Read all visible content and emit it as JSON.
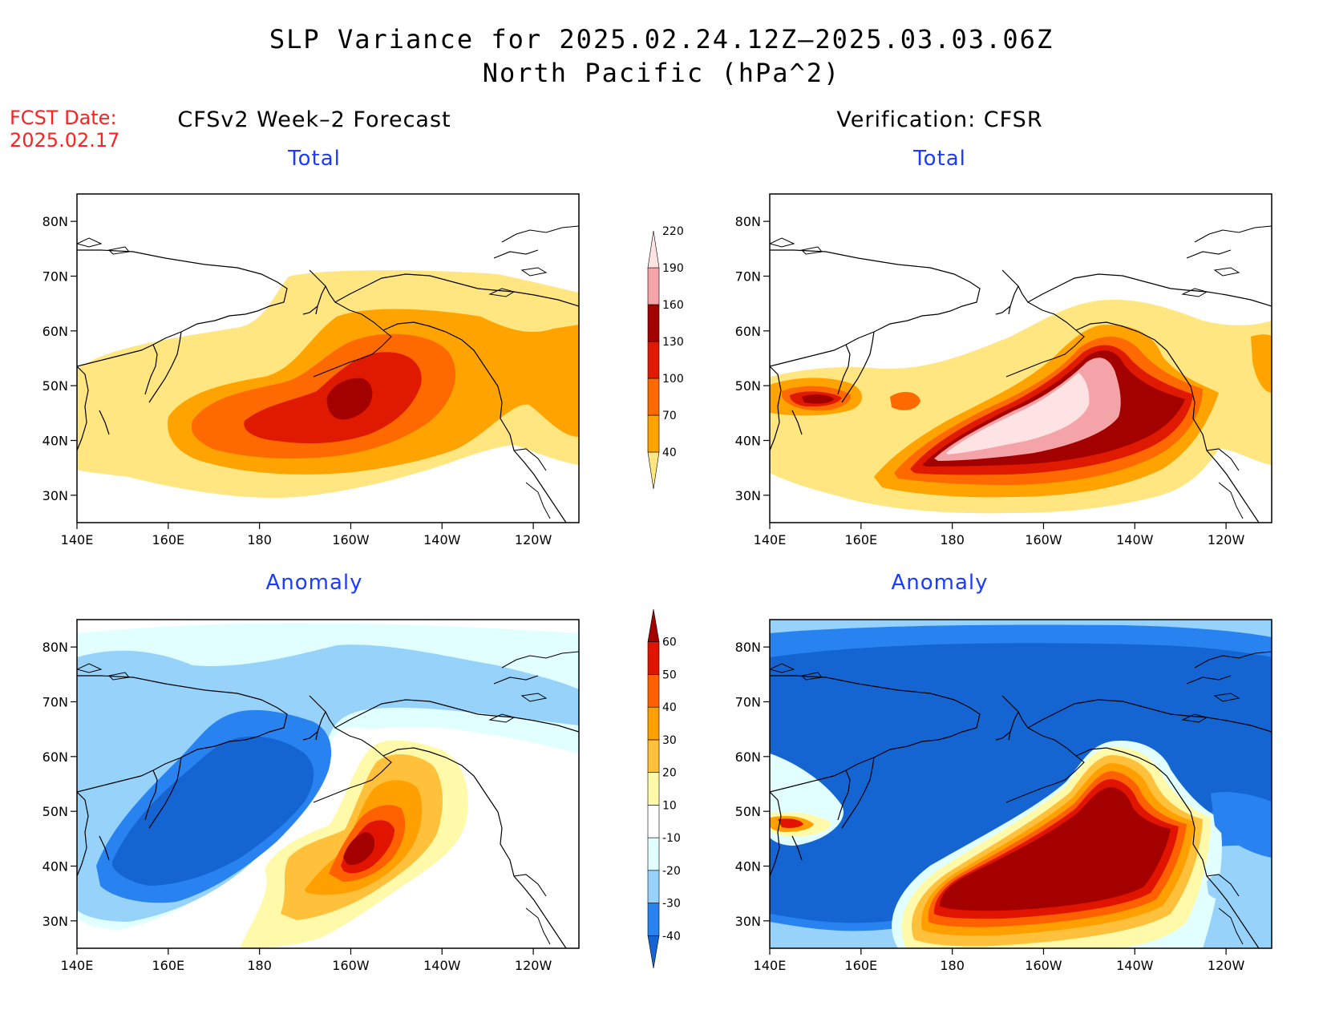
{
  "title": {
    "line1": "SLP Variance for 2025.02.24.12Z–2025.03.03.06Z",
    "line2": "North Pacific (hPa^2)"
  },
  "fcst": {
    "label": "FCST Date:",
    "date": "2025.02.17"
  },
  "columns": {
    "left": "CFSv2 Week–2 Forecast",
    "right": "Verification: CFSR"
  },
  "rows": {
    "top": "Total",
    "bottom": "Anomaly"
  },
  "axes": {
    "lat_ticks": [
      "30N",
      "40N",
      "50N",
      "60N",
      "70N",
      "80N"
    ],
    "lon_ticks": [
      "140E",
      "160E",
      "180",
      "160W",
      "140W",
      "120W"
    ]
  },
  "colorbar_total": {
    "labels": [
      "40",
      "70",
      "100",
      "130",
      "160",
      "190",
      "220"
    ],
    "colors": [
      "#ffe680",
      "#ffa300",
      "#ff6a00",
      "#e01a00",
      "#a30000",
      "#f4a3a8",
      "#fde3e3"
    ]
  },
  "colorbar_anomaly": {
    "labels": [
      "-40",
      "-30",
      "-20",
      "-10",
      "10",
      "20",
      "30",
      "40",
      "50",
      "60"
    ],
    "colors": [
      "#1464d2",
      "#2882f0",
      "#96d2fa",
      "#e1ffff",
      "#ffffff",
      "#fffaaa",
      "#ffc03c",
      "#ffa000",
      "#ff6000",
      "#e11400",
      "#a50000"
    ]
  },
  "palette": {
    "land_line": "#000000",
    "frame": "#000000"
  }
}
